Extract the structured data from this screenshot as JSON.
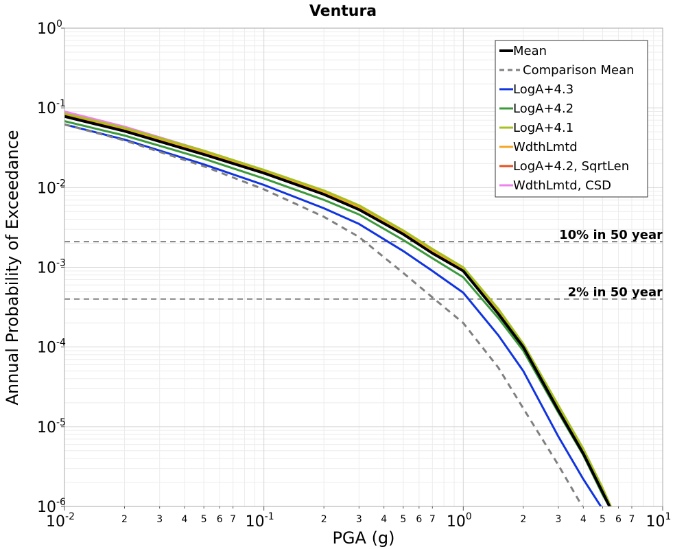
{
  "chart_data": {
    "type": "line",
    "title": "Ventura",
    "xlabel": "PGA (g)",
    "ylabel": "Annual Probability of Exceedance",
    "xscale": "log",
    "yscale": "log",
    "xlim": [
      0.01,
      10
    ],
    "ylim": [
      1e-06,
      1
    ],
    "grid": true,
    "legend_position": "top-right",
    "x_major_ticks": [
      {
        "base": "10",
        "exp": "-2",
        "value": 0.01
      },
      {
        "base": "10",
        "exp": "-1",
        "value": 0.1
      },
      {
        "base": "10",
        "exp": "0",
        "value": 1
      },
      {
        "base": "10",
        "exp": "1",
        "value": 10
      }
    ],
    "x_minor_ticks": [
      {
        "label": "2",
        "value": 0.02
      },
      {
        "label": "3",
        "value": 0.03
      },
      {
        "label": "4",
        "value": 0.04
      },
      {
        "label": "5",
        "value": 0.05
      },
      {
        "label": "6",
        "value": 0.06
      },
      {
        "label": "7",
        "value": 0.07
      },
      {
        "label": "2",
        "value": 0.2
      },
      {
        "label": "3",
        "value": 0.3
      },
      {
        "label": "4",
        "value": 0.4
      },
      {
        "label": "5",
        "value": 0.5
      },
      {
        "label": "6",
        "value": 0.6
      },
      {
        "label": "7",
        "value": 0.7
      },
      {
        "label": "2",
        "value": 2
      },
      {
        "label": "3",
        "value": 3
      },
      {
        "label": "4",
        "value": 4
      },
      {
        "label": "5",
        "value": 5
      },
      {
        "label": "6",
        "value": 6
      },
      {
        "label": "7",
        "value": 7
      }
    ],
    "y_major_ticks": [
      {
        "base": "10",
        "exp": "0",
        "value": 1
      },
      {
        "base": "10",
        "exp": "-1",
        "value": 0.1
      },
      {
        "base": "10",
        "exp": "-2",
        "value": 0.01
      },
      {
        "base": "10",
        "exp": "-3",
        "value": 0.001
      },
      {
        "base": "10",
        "exp": "-4",
        "value": 0.0001
      },
      {
        "base": "10",
        "exp": "-5",
        "value": 1e-05
      },
      {
        "base": "10",
        "exp": "-6",
        "value": 1e-06
      }
    ],
    "reference_lines": [
      {
        "label": "10% in 50 year",
        "y": 0.0021,
        "color": "#808080"
      },
      {
        "label": "2% in 50 year",
        "y": 0.0004,
        "color": "#808080"
      }
    ],
    "series": [
      {
        "name": "WdthLmtd, CSD",
        "color": "#ee82ee",
        "dash": "solid",
        "width": 3,
        "x": [
          0.01,
          0.02,
          0.05,
          0.1,
          0.2,
          0.3,
          0.5,
          0.7,
          1.0,
          1.5,
          2.0,
          3.0,
          4.0,
          5.0,
          5.5
        ],
        "y": [
          0.09,
          0.058,
          0.029,
          0.0165,
          0.0088,
          0.0057,
          0.0027,
          0.0015,
          0.00095,
          0.00028,
          0.000105,
          1.7e-05,
          4.8e-06,
          1.6e-06,
          9.5e-07
        ]
      },
      {
        "name": "LogA+4.2, SqrtLen",
        "color": "#e8501e",
        "dash": "solid",
        "width": 3,
        "x": [
          0.01,
          0.02,
          0.05,
          0.1,
          0.2,
          0.3,
          0.5,
          0.7,
          1.0,
          1.5,
          2.0,
          3.0,
          4.0,
          5.0,
          5.5
        ],
        "y": [
          0.083,
          0.054,
          0.028,
          0.016,
          0.0086,
          0.0056,
          0.0027,
          0.0015,
          0.00093,
          0.00027,
          0.0001,
          1.6e-05,
          4.6e-06,
          1.5e-06,
          9e-07
        ]
      },
      {
        "name": "WdthLmtd",
        "color": "#f5a623",
        "dash": "solid",
        "width": 3,
        "x": [
          0.01,
          0.02,
          0.05,
          0.1,
          0.2,
          0.3,
          0.5,
          0.7,
          1.0,
          1.5,
          2.0,
          3.0,
          4.0,
          5.0,
          5.5
        ],
        "y": [
          0.085,
          0.055,
          0.028,
          0.0162,
          0.0087,
          0.0057,
          0.0028,
          0.0016,
          0.00097,
          0.00028,
          0.000105,
          1.7e-05,
          4.8e-06,
          1.6e-06,
          9.5e-07
        ]
      },
      {
        "name": "LogA+4.1",
        "color": "#a8c020",
        "dash": "solid",
        "width": 3,
        "x": [
          0.01,
          0.02,
          0.05,
          0.1,
          0.2,
          0.3,
          0.5,
          0.7,
          1.0,
          1.5,
          2.0,
          3.0,
          4.0,
          5.0,
          5.5
        ],
        "y": [
          0.085,
          0.056,
          0.029,
          0.0167,
          0.0092,
          0.006,
          0.0029,
          0.0017,
          0.001,
          0.0003,
          0.00011,
          1.85e-05,
          5.3e-06,
          1.7e-06,
          1e-06
        ]
      },
      {
        "name": "LogA+4.2",
        "color": "#3a9a3a",
        "dash": "solid",
        "width": 3,
        "x": [
          0.01,
          0.02,
          0.05,
          0.1,
          0.2,
          0.3,
          0.5,
          0.7,
          1.0,
          1.5,
          2.0,
          3.0,
          4.0,
          5.0,
          5.5
        ],
        "y": [
          0.068,
          0.045,
          0.023,
          0.013,
          0.007,
          0.0046,
          0.0022,
          0.0013,
          0.00075,
          0.00023,
          9e-05,
          1.5e-05,
          4.4e-06,
          1.4e-06,
          8.5e-07
        ]
      },
      {
        "name": "LogA+4.3",
        "color": "#1034e0",
        "dash": "solid",
        "width": 3,
        "x": [
          0.01,
          0.02,
          0.05,
          0.1,
          0.2,
          0.3,
          0.5,
          0.7,
          1.0,
          1.5,
          2.0,
          3.0,
          4.0,
          5.0
        ],
        "y": [
          0.062,
          0.04,
          0.0195,
          0.0108,
          0.0055,
          0.0035,
          0.0016,
          0.0009,
          0.00048,
          0.00014,
          5e-05,
          7.5e-06,
          2.2e-06,
          9e-07
        ]
      },
      {
        "name": "Comparison Mean",
        "color": "#808080",
        "dash": "dashed",
        "width": 3,
        "x": [
          0.01,
          0.02,
          0.05,
          0.1,
          0.2,
          0.3,
          0.5,
          0.7,
          1.0,
          1.5,
          2.0,
          3.0,
          4.0
        ],
        "y": [
          0.062,
          0.039,
          0.0185,
          0.0095,
          0.0043,
          0.0024,
          0.00085,
          0.00042,
          0.0002,
          5.5e-05,
          1.7e-05,
          3.3e-06,
          9.5e-07
        ]
      },
      {
        "name": "Mean",
        "color": "#000000",
        "dash": "solid",
        "width": 4,
        "x": [
          0.01,
          0.02,
          0.05,
          0.1,
          0.2,
          0.3,
          0.5,
          0.7,
          1.0,
          1.5,
          2.0,
          3.0,
          4.0,
          5.0,
          5.5
        ],
        "y": [
          0.078,
          0.051,
          0.026,
          0.0152,
          0.0082,
          0.0053,
          0.0026,
          0.0015,
          0.0009,
          0.00026,
          0.0001,
          1.6e-05,
          4.6e-06,
          1.5e-06,
          9e-07
        ]
      }
    ],
    "legend": [
      {
        "name": "Mean",
        "color": "#000000",
        "dash": "solid"
      },
      {
        "name": "Comparison Mean",
        "color": "#808080",
        "dash": "dashed"
      },
      {
        "name": "LogA+4.3",
        "color": "#1034e0",
        "dash": "solid"
      },
      {
        "name": "LogA+4.2",
        "color": "#3a9a3a",
        "dash": "solid"
      },
      {
        "name": "LogA+4.1",
        "color": "#a8c020",
        "dash": "solid"
      },
      {
        "name": "WdthLmtd",
        "color": "#f5a623",
        "dash": "solid"
      },
      {
        "name": "LogA+4.2, SqrtLen",
        "color": "#e8501e",
        "dash": "solid"
      },
      {
        "name": "WdthLmtd, CSD",
        "color": "#ee82ee",
        "dash": "solid"
      }
    ]
  }
}
